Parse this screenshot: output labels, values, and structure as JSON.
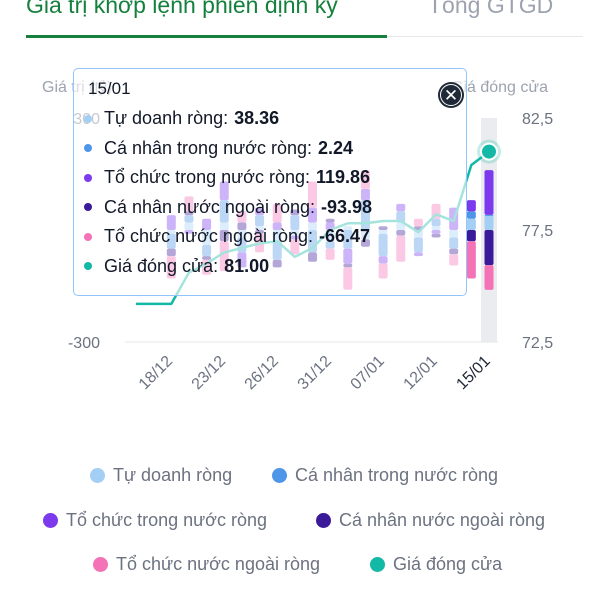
{
  "tabs": {
    "active": "Giá trị khớp lệnh phiên định kỳ",
    "inactive": "Tổng GTGD"
  },
  "chart_data": {
    "type": "bar",
    "left_axis": {
      "label": "Giá trị (tỷ)",
      "ticks": [
        "300",
        "-300"
      ],
      "range": [
        -300,
        300
      ]
    },
    "right_axis": {
      "label": "Giá đóng cửa",
      "ticks": [
        "82,5",
        "77,5",
        "72,5"
      ],
      "range": [
        72.5,
        82.5
      ]
    },
    "x_tick_labels": [
      "18/12",
      "23/12",
      "26/12",
      "31/12",
      "07/01",
      "12/01",
      "15/01"
    ],
    "x_tick_index": [
      2,
      5,
      8,
      11,
      14,
      17,
      20
    ],
    "bar_count": 21,
    "stacked": true,
    "series": [
      {
        "name": "Tự doanh ròng",
        "color": "#a3cff5",
        "values": [
          0,
          0,
          -10,
          20,
          -40,
          20,
          -20,
          10,
          -30,
          -15,
          20,
          -30,
          10,
          -25,
          -10,
          20,
          -20,
          10,
          -20,
          30,
          38.36
        ]
      },
      {
        "name": "Cá nhân trong nước ròng",
        "color": "#4f95e8",
        "values": [
          0,
          0,
          -40,
          20,
          -30,
          60,
          -40,
          30,
          -50,
          40,
          -60,
          -20,
          -50,
          80,
          -60,
          30,
          -40,
          20,
          -30,
          20,
          2.24
        ]
      },
      {
        "name": "Tổ chức trong nước ròng",
        "color": "#7c3aed",
        "values": [
          0,
          0,
          40,
          -10,
          30,
          50,
          -40,
          20,
          20,
          -10,
          40,
          20,
          -40,
          30,
          -20,
          20,
          -10,
          -10,
          60,
          30,
          119.86
        ]
      },
      {
        "name": "Cá nhân nước ngoài ròng",
        "color": "#3b1a9a",
        "values": [
          0,
          0,
          -20,
          10,
          -10,
          -30,
          20,
          -10,
          -20,
          15,
          -25,
          10,
          -10,
          -20,
          10,
          -15,
          10,
          -10,
          -15,
          -30,
          -93.98
        ]
      },
      {
        "name": "Tổ chức nước ngoài ròng",
        "color": "#f472b6",
        "values": [
          0,
          0,
          -60,
          40,
          -40,
          -80,
          30,
          -50,
          50,
          -40,
          70,
          -30,
          -60,
          50,
          -40,
          -70,
          20,
          40,
          -30,
          -100,
          -66.47
        ]
      },
      {
        "name": "Giá đóng cửa",
        "color": "#14b8a6",
        "type": "line",
        "values": [
          74.2,
          74.2,
          74.2,
          75.6,
          76.0,
          76.5,
          76.7,
          76.9,
          77.0,
          76.3,
          76.7,
          77.5,
          77.8,
          77.8,
          77.9,
          77.9,
          77.4,
          78.2,
          77.9,
          80.4,
          81.0
        ]
      }
    ],
    "tooltip": {
      "date": "15/01",
      "rows": [
        {
          "label": "Tự doanh ròng:",
          "value": "38.36",
          "color": "#a3cff5"
        },
        {
          "label": "Cá nhân trong nước ròng:",
          "value": "2.24",
          "color": "#4f95e8"
        },
        {
          "label": "Tổ chức trong nước ròng:",
          "value": "119.86",
          "color": "#7c3aed"
        },
        {
          "label": "Cá nhân nước ngoài ròng:",
          "value": "-93.98",
          "color": "#3b1a9a"
        },
        {
          "label": "Tổ chức nước ngoài ròng:",
          "value": "-66.47",
          "color": "#f472b6"
        },
        {
          "label": "Giá đóng cửa:",
          "value": "81.00",
          "color": "#14b8a6"
        }
      ]
    },
    "legend": [
      {
        "label": "Tự doanh ròng",
        "color": "#a3cff5"
      },
      {
        "label": "Cá nhân trong nước ròng",
        "color": "#4f95e8"
      },
      {
        "label": "Tổ chức trong nước ròng",
        "color": "#7c3aed"
      },
      {
        "label": "Cá nhân nước ngoài ròng",
        "color": "#3b1a9a"
      },
      {
        "label": "Tổ chức nước ngoài ròng",
        "color": "#f472b6"
      },
      {
        "label": "Giá đóng cửa",
        "color": "#14b8a6"
      }
    ],
    "highlighted_date": "15/01"
  }
}
